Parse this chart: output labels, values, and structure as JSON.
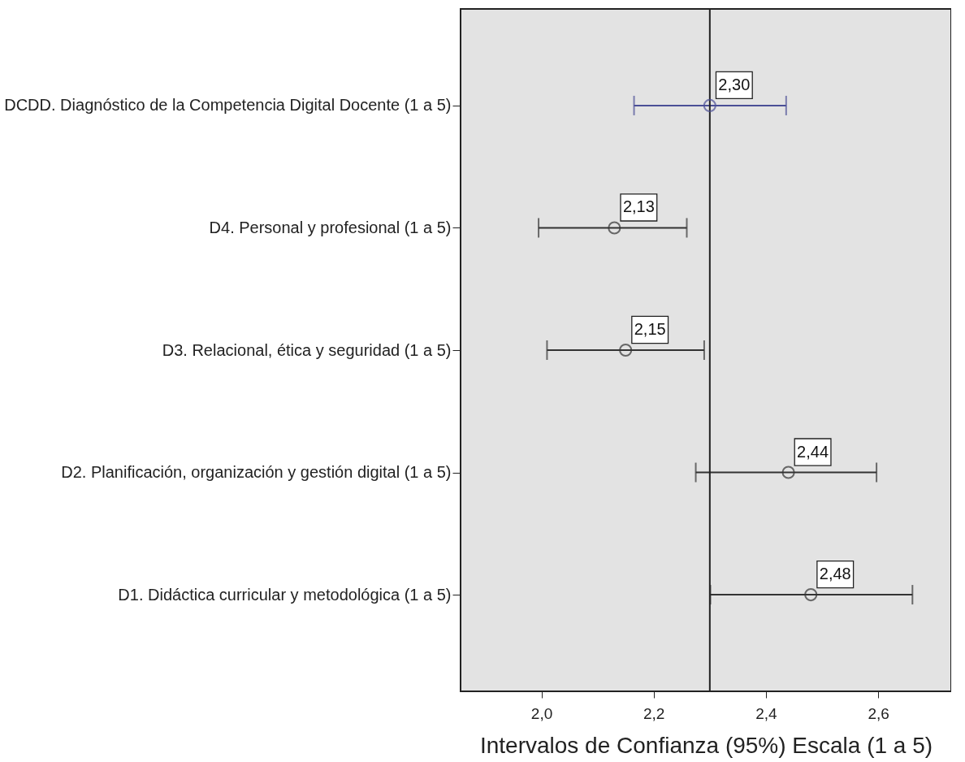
{
  "chart_data": {
    "type": "scatter",
    "orientation": "horizontal",
    "marker": "circle",
    "xlabel": "Intervalos de Confianza (95%) Escala (1 a 5)",
    "categories": [
      "DCDD. Diagnóstico de la Competencia Digital Docente (1 a 5)",
      "D4. Personal y profesional (1 a 5)",
      "D3. Relacional, ética y seguridad (1 a 5)",
      "D2. Planificación, organización y gestión digital (1 a 5)",
      "D1. Didáctica curricular y metodológica (1 a 5)"
    ],
    "values": [
      2.3,
      2.13,
      2.15,
      2.44,
      2.48
    ],
    "errors": [
      [
        2.165,
        2.436
      ],
      [
        1.995,
        2.259
      ],
      [
        2.01,
        2.29
      ],
      [
        2.275,
        2.597
      ],
      [
        2.301,
        2.661
      ]
    ],
    "value_labels": [
      "2,30",
      "2,13",
      "2,15",
      "2,44",
      "2,48"
    ],
    "colors": [
      "#4b4f96",
      "#333333",
      "#333333",
      "#333333",
      "#333333"
    ],
    "xlim": [
      1.856,
      2.73
    ],
    "xticks": [
      {
        "value": 2.0,
        "label": "2,0"
      },
      {
        "value": 2.2,
        "label": "2,2"
      },
      {
        "value": 2.4,
        "label": "2,4"
      },
      {
        "value": 2.6,
        "label": "2,6"
      }
    ],
    "ref_lines": [
      {
        "axis": "x",
        "value": 2.3,
        "color": "#222222"
      }
    ],
    "grid": false
  }
}
